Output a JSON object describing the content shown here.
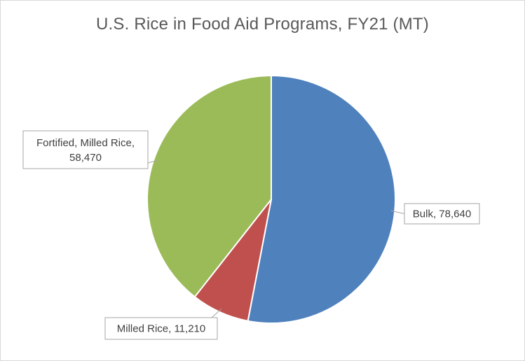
{
  "chart_data": {
    "type": "pie",
    "title": "U.S. Rice in Food Aid Programs, FY21 (MT)",
    "slices": [
      {
        "label": "Bulk",
        "value": 78640,
        "display": "78,640",
        "color": "#4f81bd"
      },
      {
        "label": "Milled Rice",
        "value": 11210,
        "display": "11,210",
        "color": "#c0504d"
      },
      {
        "label": "Fortified, Milled Rice",
        "value": 58470,
        "display": "58,470",
        "color": "#9bbb59"
      }
    ],
    "start_angle": "12 o'clock",
    "direction": "clockwise",
    "data_labels": "category name and value in callouts",
    "legend": "none"
  }
}
